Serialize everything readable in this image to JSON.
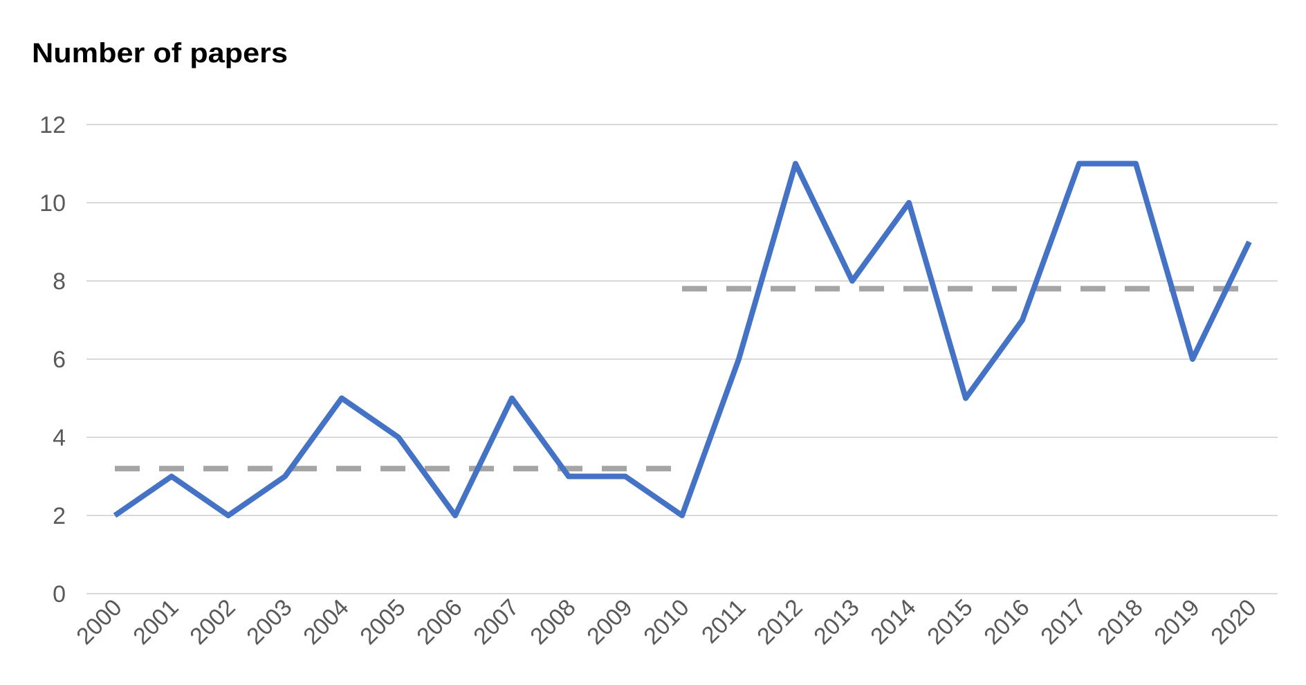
{
  "chart_data": {
    "type": "line",
    "title": "Number of papers",
    "categories": [
      "2000",
      "2001",
      "2002",
      "2003",
      "2004",
      "2005",
      "2006",
      "2007",
      "2008",
      "2009",
      "2010",
      "2011",
      "2012",
      "2013",
      "2014",
      "2015",
      "2016",
      "2017",
      "2018",
      "2019",
      "2020"
    ],
    "series": [
      {
        "color": "#4472c4",
        "style": "solid",
        "values": [
          2,
          3,
          2,
          3,
          5,
          4,
          2,
          5,
          3,
          3,
          2,
          6,
          11,
          8,
          10,
          5,
          7,
          11,
          11,
          6,
          9
        ]
      },
      {
        "color": "#a5a5a5",
        "style": "dashed",
        "values": [
          3.2,
          3.2,
          3.2,
          3.2,
          3.2,
          3.2,
          3.2,
          3.2,
          3.2,
          3.2,
          3.2,
          null,
          null,
          null,
          null,
          null,
          null,
          null,
          null,
          null,
          null
        ]
      },
      {
        "color": "#a5a5a5",
        "style": "dashed",
        "values": [
          null,
          null,
          null,
          null,
          null,
          null,
          null,
          null,
          null,
          null,
          7.8,
          7.8,
          7.8,
          7.8,
          7.8,
          7.8,
          7.8,
          7.8,
          7.8,
          7.8,
          7.8
        ]
      }
    ],
    "ylim": [
      0,
      12
    ],
    "yticks": [
      0,
      2,
      4,
      6,
      8,
      10,
      12
    ],
    "grid": true
  }
}
